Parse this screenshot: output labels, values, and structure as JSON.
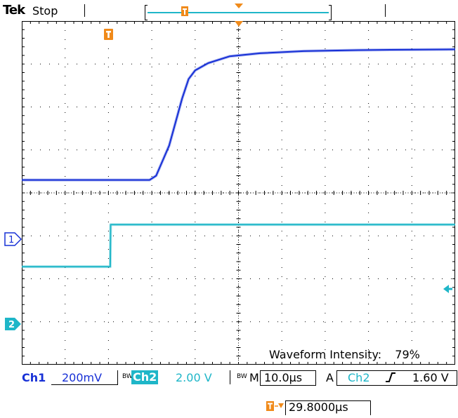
{
  "header": {
    "brand": "Tek",
    "acquisition_state": "Stop"
  },
  "plot": {
    "info_label": "Waveform Intensity:",
    "info_value": "79%"
  },
  "markers": {
    "ch1": "1",
    "ch2": "2",
    "trigger_glyph": "T"
  },
  "status_bar": {
    "ch1_label": "Ch1",
    "ch1_scale": "200mV",
    "ch1_bw": "BW",
    "ch2_label": "Ch2",
    "ch2_scale": "2.00 V",
    "ch2_bw": "BW",
    "timebase_label": "M",
    "timebase_value": "10.0µs",
    "trigger_mode": "A",
    "trigger_source": "Ch2",
    "trigger_level": "1.60 V"
  },
  "trigger_position": {
    "value": "29.8000µs"
  },
  "colors": {
    "ch1": "#1730d6",
    "ch2": "#1fb6c8",
    "trigger": "#f08a1a",
    "grid": "#000000"
  },
  "chart_data": {
    "type": "line",
    "x_divisions": 10,
    "y_divisions": 8,
    "x_unit": "div",
    "y_unit": "div",
    "series": [
      {
        "name": "Ch1",
        "color": "#1730d6",
        "x": [
          0,
          1.0,
          2.0,
          2.95,
          3.1,
          3.4,
          3.7,
          3.85,
          4.0,
          4.3,
          4.8,
          5.5,
          6.5,
          7.5,
          8.5,
          10
        ],
        "y": [
          3.7,
          3.7,
          3.7,
          3.7,
          3.6,
          2.9,
          1.8,
          1.35,
          1.15,
          0.98,
          0.82,
          0.75,
          0.7,
          0.68,
          0.67,
          0.66
        ]
      },
      {
        "name": "Ch2",
        "color": "#1fb6c8",
        "x": [
          0,
          2.04,
          2.05,
          10
        ],
        "y": [
          5.72,
          5.72,
          4.74,
          4.74
        ]
      }
    ]
  }
}
